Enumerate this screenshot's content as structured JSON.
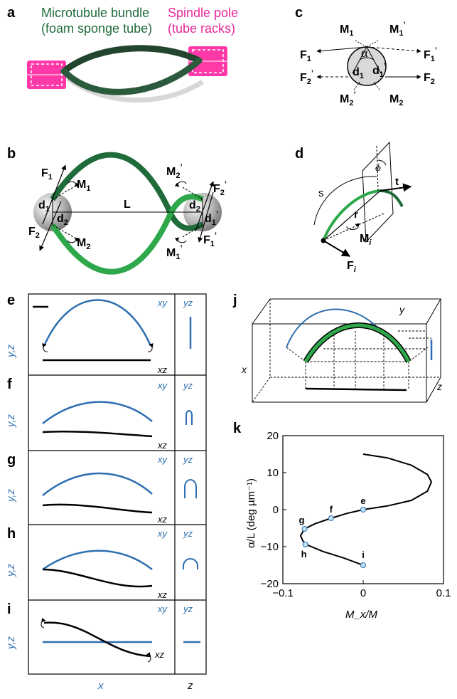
{
  "panel_labels": {
    "a": "a",
    "b": "b",
    "c": "c",
    "d": "d",
    "e": "e",
    "f": "f",
    "g": "g",
    "h": "h",
    "i": "i",
    "j": "j",
    "k": "k"
  },
  "colors": {
    "microtubule": "#1f6b3a",
    "pole": "#e8289a",
    "light_green": "#2ea84a",
    "blue": "#2d6fb0",
    "black": "#000000"
  },
  "panel_a": {
    "label_bundle_1": "Microtubule bundle",
    "label_bundle_2": "(foam sponge tube)",
    "label_pole_1": "Spindle pole",
    "label_pole_2": "(tube racks)"
  },
  "panel_b": {
    "F1": "F",
    "F1_sub": "1",
    "F2": "F",
    "F2_sub": "2",
    "M1": "M",
    "M1_sub": "1",
    "M2": "M",
    "M2_sub": "2",
    "d1": "d",
    "d1_sub": "1",
    "d2": "d",
    "d2_sub": "2",
    "L": "L",
    "M2p": "M",
    "M2p_sub": "2",
    "prime": "’",
    "F2p": "F",
    "F2p_sub": "2",
    "d2p": "d",
    "d2p_sub": "2",
    "d1p": "d",
    "d1p_sub": "1",
    "M1p": "M",
    "M1p_sub": "1",
    "F1p": "F",
    "F1p_sub": "1"
  },
  "panel_c": {
    "M1": "M",
    "M1_sub": "1",
    "M1p": "M",
    "M1p_sub": "1",
    "F1": "F",
    "F1_sub": "1",
    "F1p": "F",
    "F1p_sub": "1",
    "alpha": "α",
    "d1": "d",
    "d1_sub": "1",
    "d1p": "d",
    "d1p_sub": "1",
    "F2p": "F",
    "F2p_sub": "2",
    "F2": "F",
    "F2_sub": "2",
    "M2p": "M",
    "M2p_sub": "2",
    "M2": "M",
    "M2_sub": "2",
    "prime": "’"
  },
  "panel_d": {
    "s": "s",
    "phi": "ϕ",
    "t": "t",
    "r": "r",
    "Mi": "M",
    "Mi_sub": "i",
    "Fi": "F",
    "Fi_sub": "i"
  },
  "shape_panels": {
    "tag_xy": "xy",
    "tag_yz": "yz",
    "tag_xz": "xz",
    "y_axis_label": "y,z",
    "x_axis_label": "x",
    "z_axis_label": "z"
  },
  "panel_j": {
    "x": "x",
    "y": "y",
    "z": "z"
  },
  "chart_data": {
    "type": "line",
    "xlabel": "M_x/M",
    "ylabel": "α/L (deg µm⁻¹)",
    "xlim": [
      -0.1,
      0.1
    ],
    "ylim": [
      -20,
      20
    ],
    "xticks": [
      "−0.1",
      "0",
      "0.1"
    ],
    "yticks": [
      "20",
      "10",
      "0",
      "−10",
      "−20"
    ],
    "series": [
      {
        "x": [
          0,
          0.03,
          0.06,
          0.08,
          0.085,
          0.08,
          0.06,
          0.03,
          0,
          -0.02,
          -0.04,
          -0.06,
          -0.073,
          -0.078,
          -0.075,
          -0.07,
          -0.05,
          -0.025,
          0
        ],
        "y": [
          15,
          14,
          12,
          9.5,
          7.5,
          5,
          2.5,
          1,
          0,
          -1,
          -2.3,
          -3.8,
          -5.2,
          -7,
          -8.5,
          -9.5,
          -11.3,
          -13,
          -15
        ]
      }
    ],
    "points": [
      {
        "label": "e",
        "x": 0,
        "y": 0
      },
      {
        "label": "f",
        "x": -0.04,
        "y": -2.3
      },
      {
        "label": "g",
        "x": -0.073,
        "y": -5.2
      },
      {
        "label": "h",
        "x": -0.072,
        "y": -9.4
      },
      {
        "label": "i",
        "x": 0,
        "y": -15
      }
    ]
  }
}
